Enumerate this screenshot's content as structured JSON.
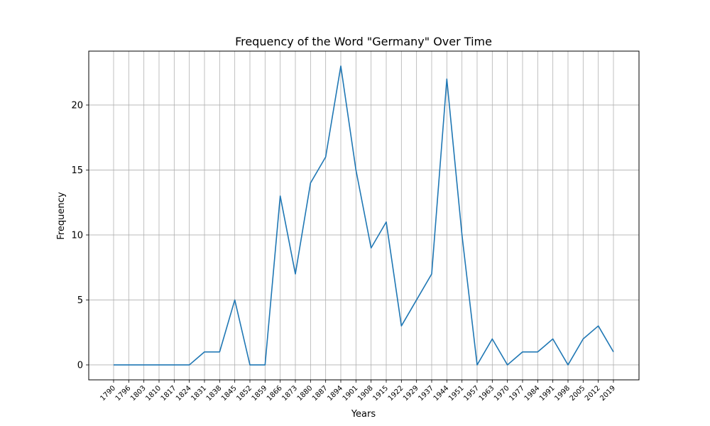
{
  "chart_data": {
    "type": "line",
    "title": "Frequency of the Word \"Germany\" Over Time",
    "xlabel": "Years",
    "ylabel": "Frequency",
    "ylim": [
      -1.15,
      24.15
    ],
    "yticks": [
      0,
      5,
      10,
      15,
      20
    ],
    "grid": true,
    "series_color": "#1f77b4",
    "categories": [
      "1790",
      "1796",
      "1803",
      "1810",
      "1817",
      "1824",
      "1831",
      "1838",
      "1845",
      "1852",
      "1859",
      "1866",
      "1873",
      "1880",
      "1887",
      "1894",
      "1901",
      "1908",
      "1915",
      "1922",
      "1929",
      "1937",
      "1944",
      "1951",
      "1957",
      "1963",
      "1970",
      "1977",
      "1984",
      "1991",
      "1998",
      "2005",
      "2012",
      "2019"
    ],
    "values": [
      0,
      0,
      0,
      0,
      0,
      0,
      1,
      1,
      5,
      0,
      0,
      13,
      7,
      14,
      16,
      23,
      15,
      9,
      11,
      3,
      5,
      7,
      22,
      10,
      0,
      2,
      0,
      1,
      1,
      2,
      0,
      2,
      3,
      1
    ]
  }
}
